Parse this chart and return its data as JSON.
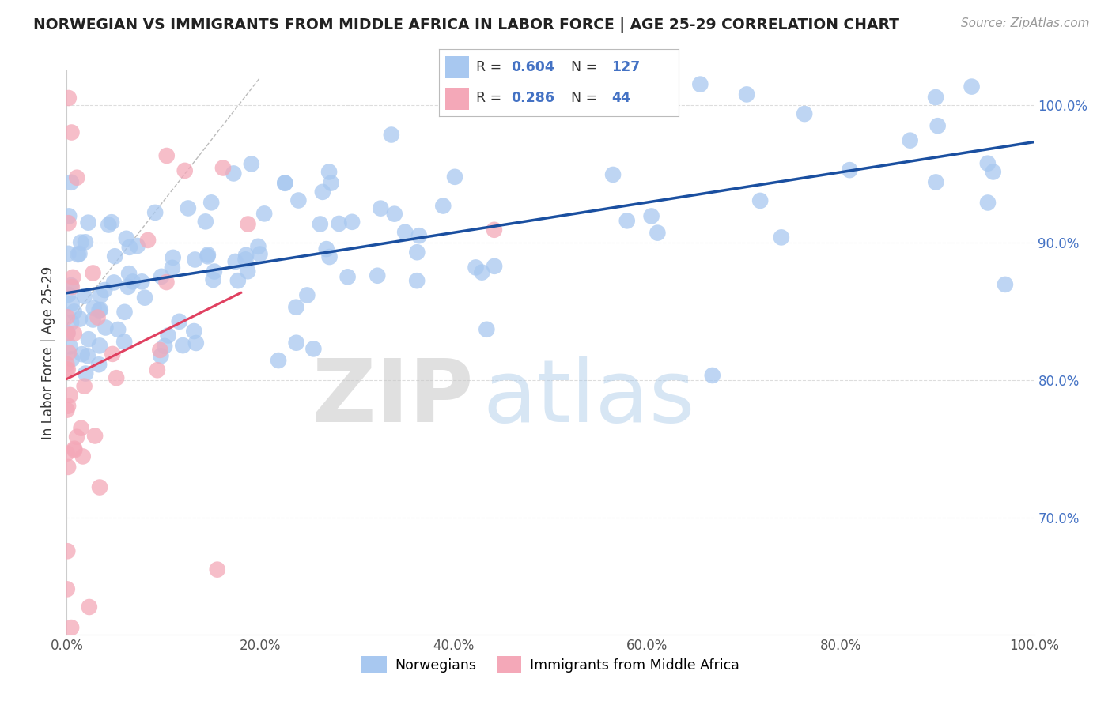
{
  "title": "NORWEGIAN VS IMMIGRANTS FROM MIDDLE AFRICA IN LABOR FORCE | AGE 25-29 CORRELATION CHART",
  "source": "Source: ZipAtlas.com",
  "ylabel": "In Labor Force | Age 25-29",
  "xlim": [
    0.0,
    1.0
  ],
  "ylim": [
    0.615,
    1.025
  ],
  "xticks": [
    0.0,
    0.2,
    0.4,
    0.6,
    0.8,
    1.0
  ],
  "xticklabels": [
    "0.0%",
    "20.0%",
    "40.0%",
    "60.0%",
    "80.0%",
    "100.0%"
  ],
  "yticks": [
    0.7,
    0.8,
    0.9,
    1.0
  ],
  "yticklabels": [
    "70.0%",
    "80.0%",
    "90.0%",
    "100.0%"
  ],
  "blue_color": "#A8C8F0",
  "pink_color": "#F4A8B8",
  "blue_line_color": "#1A4FA0",
  "pink_line_color": "#E04060",
  "r_blue": 0.604,
  "n_blue": 127,
  "r_pink": 0.286,
  "n_pink": 44,
  "legend_labels": [
    "Norwegians",
    "Immigrants from Middle Africa"
  ],
  "watermark_zip": "ZIP",
  "watermark_atlas": "atlas",
  "background_color": "#FFFFFF",
  "grid_color": "#DDDDDD",
  "title_color": "#222222",
  "axis_label_color": "#333333",
  "tick_label_color": "#4472C4",
  "blue_seed": 12,
  "pink_seed": 99
}
